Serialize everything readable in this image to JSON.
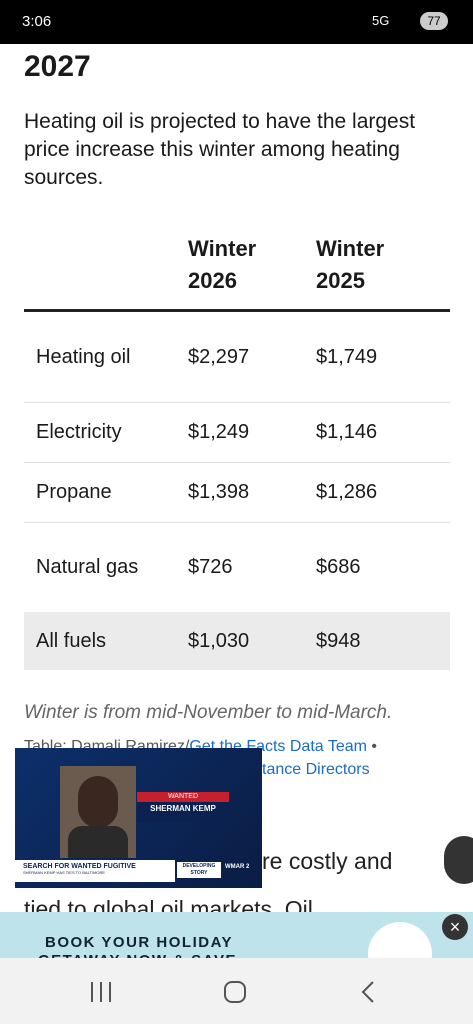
{
  "status_bar": {
    "time": "3:06",
    "network": "5G",
    "battery": "77"
  },
  "article": {
    "heading": "2027",
    "intro": "Heating oil is projected to have the largest price increase this winter among heating sources.",
    "table": {
      "header": [
        "Winter 2026",
        "Winter 2025"
      ],
      "rows": [
        [
          "Heating oil",
          "$2,297",
          "$1,749"
        ],
        [
          "Electricity",
          "$1,249",
          "$1,146"
        ],
        [
          "Propane",
          "$1,398",
          "$1,286"
        ],
        [
          "Natural gas",
          "$726",
          "$686"
        ],
        [
          "All fuels",
          "$1,030",
          "$948"
        ]
      ]
    },
    "note": "Winter is from mid-November to mid-March.",
    "source_prefix": "Table: Damali Ramirez/",
    "source_link": "Get the Facts Data Team",
    "source_sep": "•",
    "source_line2": "tance Directors",
    "body_line1": "re costly and",
    "body_line2": "tied to global oil markets. Oil"
  },
  "video": {
    "tag": "WANTED",
    "name": "SHERMAN KEMP",
    "headline": "SEARCH FOR WANTED FUGITIVE",
    "subline": "SHERMAN KEMP HAS TIES TO BALTIMORE",
    "badge": "DEVELOPING STORY",
    "station": "WMAR 2"
  },
  "ad": {
    "line1": "BOOK YOUR HOLIDAY",
    "line2": "GETAWAY NOW & SAVE"
  }
}
